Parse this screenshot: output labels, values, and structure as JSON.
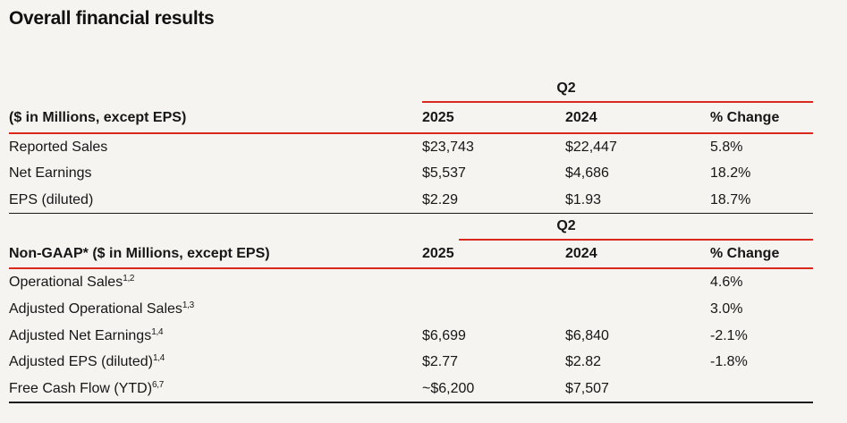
{
  "page": {
    "title": "Overall financial results"
  },
  "colors": {
    "background": "#f5f4f1",
    "accent_red_line": "#d8291c",
    "dark_line": "#1a1a1a",
    "text": "#161616"
  },
  "table": {
    "sections": [
      {
        "group_header": "Q2",
        "columns": [
          "($ in Millions, except EPS)",
          "2025",
          "2024",
          "% Change"
        ],
        "rows": [
          {
            "label": "Reported Sales",
            "sup": "",
            "v2025": "$23,743",
            "v2024": "$22,447",
            "change": "5.8%"
          },
          {
            "label": "Net Earnings",
            "sup": "",
            "v2025": "$5,537",
            "v2024": "$4,686",
            "change": "18.2%"
          },
          {
            "label": "EPS (diluted)",
            "sup": "",
            "v2025": "$2.29",
            "v2024": "$1.93",
            "change": "18.7%"
          }
        ]
      },
      {
        "group_header": "Q2",
        "columns": [
          "Non-GAAP* ($ in Millions, except EPS)",
          "2025",
          "2024",
          "% Change"
        ],
        "rows": [
          {
            "label": "Operational Sales",
            "sup": "1,2",
            "v2025": "",
            "v2024": "",
            "change": "4.6%"
          },
          {
            "label": "Adjusted Operational Sales",
            "sup": "1,3",
            "v2025": "",
            "v2024": "",
            "change": "3.0%"
          },
          {
            "label": "Adjusted Net Earnings",
            "sup": "1,4",
            "v2025": "$6,699",
            "v2024": "$6,840",
            "change": "-2.1%"
          },
          {
            "label": "Adjusted EPS (diluted)",
            "sup": "1,4",
            "v2025": "$2.77",
            "v2024": "$2.82",
            "change": "-1.8%"
          },
          {
            "label": "Free Cash Flow (YTD)",
            "sup": "6,7",
            "v2025": "~$6,200",
            "v2024": "$7,507",
            "change": ""
          }
        ]
      }
    ]
  }
}
